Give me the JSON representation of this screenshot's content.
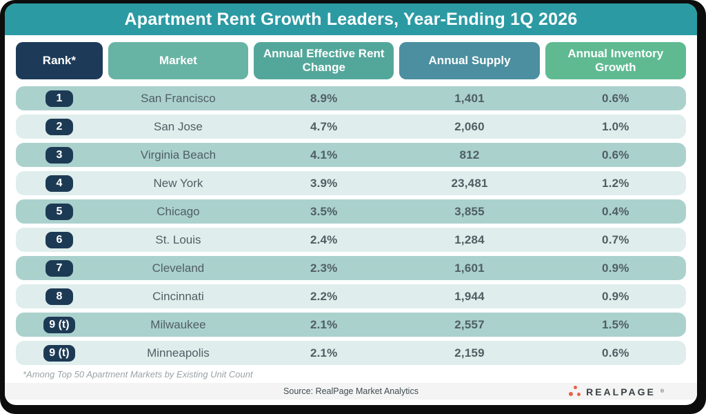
{
  "title": "Apartment Rent Growth Leaders, Year-Ending 1Q 2026",
  "colors": {
    "frame": "#0d0d0d",
    "title_bar": "#2b9aa3",
    "rank_header": "#1d3a59",
    "market_header": "#68b4a4",
    "rent_header": "#53a79a",
    "supply_header": "#4b8fa0",
    "inventory_header": "#5fba92",
    "row_odd": "#abd1cd",
    "row_even": "#dfeeec",
    "badge": "#1d3a55",
    "logo_orange": "#e8614b"
  },
  "chart_data": {
    "type": "table",
    "title": "Apartment Rent Growth Leaders, Year-Ending 1Q 2026",
    "columns": [
      {
        "key": "rank",
        "label": "Rank*"
      },
      {
        "key": "market",
        "label": "Market"
      },
      {
        "key": "rent_change",
        "label": "Annual Effective Rent Change"
      },
      {
        "key": "supply",
        "label": "Annual Supply"
      },
      {
        "key": "inventory",
        "label": "Annual Inventory Growth"
      }
    ],
    "rows": [
      {
        "rank": "1",
        "market": "San Francisco",
        "rent_change": "8.9%",
        "supply": "1,401",
        "inventory": "0.6%"
      },
      {
        "rank": "2",
        "market": "San Jose",
        "rent_change": "4.7%",
        "supply": "2,060",
        "inventory": "1.0%"
      },
      {
        "rank": "3",
        "market": "Virginia Beach",
        "rent_change": "4.1%",
        "supply": "812",
        "inventory": "0.6%"
      },
      {
        "rank": "4",
        "market": "New York",
        "rent_change": "3.9%",
        "supply": "23,481",
        "inventory": "1.2%"
      },
      {
        "rank": "5",
        "market": "Chicago",
        "rent_change": "3.5%",
        "supply": "3,855",
        "inventory": "0.4%"
      },
      {
        "rank": "6",
        "market": "St. Louis",
        "rent_change": "2.4%",
        "supply": "1,284",
        "inventory": "0.7%"
      },
      {
        "rank": "7",
        "market": "Cleveland",
        "rent_change": "2.3%",
        "supply": "1,601",
        "inventory": "0.9%"
      },
      {
        "rank": "8",
        "market": "Cincinnati",
        "rent_change": "2.2%",
        "supply": "1,944",
        "inventory": "0.9%"
      },
      {
        "rank": "9 (t)",
        "market": "Milwaukee",
        "rent_change": "2.1%",
        "supply": "2,557",
        "inventory": "1.5%"
      },
      {
        "rank": "9 (t)",
        "market": "Minneapolis",
        "rent_change": "2.1%",
        "supply": "2,159",
        "inventory": "0.6%"
      }
    ]
  },
  "footnote": "*Among Top 50 Apartment Markets by Existing Unit Count",
  "source": "Source: RealPage Market Analytics",
  "logo": {
    "text": "REALPAGE",
    "mark": "®"
  }
}
